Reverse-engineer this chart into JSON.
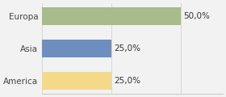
{
  "categories": [
    "America",
    "Asia",
    "Europa"
  ],
  "values": [
    25.0,
    25.0,
    50.0
  ],
  "bar_colors": [
    "#f5d98b",
    "#6e8ebf",
    "#a8bb8a"
  ],
  "labels": [
    "25,0%",
    "25,0%",
    "50,0%"
  ],
  "xlim": [
    0,
    65
  ],
  "background_color": "#f2f2f2",
  "label_fontsize": 7.5,
  "tick_fontsize": 7.5,
  "bar_height": 0.55
}
